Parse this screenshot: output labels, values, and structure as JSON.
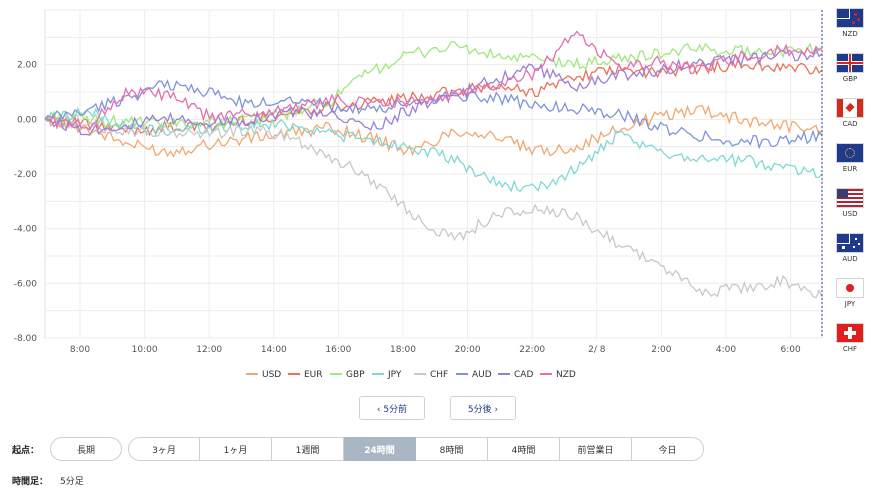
{
  "chart_data": {
    "type": "line",
    "ylim": [
      -8,
      4
    ],
    "yticks": [
      "2.00",
      "0.00",
      "-2.00",
      "-4.00",
      "-6.00",
      "-8.00"
    ],
    "xticks": [
      "8:00",
      "10:00",
      "12:00",
      "14:00",
      "16:00",
      "18:00",
      "20:00",
      "22:00",
      "2/ 8",
      "2:00",
      "4:00",
      "6:00"
    ],
    "grid": true,
    "series": [
      {
        "name": "USD",
        "color": "#f0a870",
        "values": [
          0.0,
          -0.3,
          -0.9,
          -1.2,
          -0.9,
          -0.7,
          -0.5,
          -0.3,
          -0.7,
          -1.2,
          -0.4,
          -0.6,
          -1.2,
          -1.0,
          -0.4,
          0.1,
          0.4,
          0.0,
          -0.2,
          -0.4
        ]
      },
      {
        "name": "EUR",
        "color": "#e8735a",
        "values": [
          0.0,
          -0.2,
          -0.4,
          -0.3,
          -0.3,
          0.0,
          0.2,
          0.5,
          0.6,
          0.8,
          1.0,
          1.2,
          1.0,
          1.6,
          1.8,
          1.7,
          1.9,
          2.0,
          1.9,
          1.8
        ]
      },
      {
        "name": "GBP",
        "color": "#9ee87f",
        "values": [
          0.1,
          0.0,
          -0.1,
          -0.2,
          -0.1,
          0.0,
          0.2,
          0.7,
          1.8,
          2.4,
          2.7,
          2.3,
          2.2,
          2.0,
          2.2,
          2.4,
          2.6,
          2.5,
          2.5,
          2.6
        ]
      },
      {
        "name": "JPY",
        "color": "#7fd8d4",
        "values": [
          0.0,
          0.3,
          -0.3,
          -0.4,
          -0.3,
          -0.2,
          -0.2,
          -0.5,
          -0.8,
          -1.0,
          -1.5,
          -2.3,
          -2.6,
          -1.8,
          -0.6,
          -1.2,
          -1.4,
          -1.5,
          -1.7,
          -2.0
        ]
      },
      {
        "name": "CHF",
        "color": "#c8c8c8",
        "values": [
          0.0,
          -0.2,
          -0.4,
          -0.5,
          -0.5,
          -0.4,
          -0.6,
          -1.4,
          -2.2,
          -3.5,
          -4.4,
          -3.5,
          -3.3,
          -3.6,
          -4.5,
          -5.3,
          -6.3,
          -6.2,
          -5.9,
          -6.5
        ]
      },
      {
        "name": "AUD",
        "color": "#7f93d8",
        "values": [
          0.0,
          0.3,
          0.8,
          1.3,
          1.0,
          0.5,
          0.8,
          0.5,
          0.3,
          0.6,
          0.9,
          0.8,
          0.5,
          0.4,
          0.2,
          -0.3,
          -0.6,
          -0.8,
          -0.8,
          -0.6
        ]
      },
      {
        "name": "CAD",
        "color": "#9a7fd8",
        "values": [
          0.0,
          -0.4,
          -0.2,
          0.0,
          -0.1,
          0.0,
          0.3,
          0.1,
          -0.3,
          0.4,
          0.8,
          1.5,
          1.9,
          1.2,
          1.6,
          1.8,
          2.1,
          2.2,
          2.3,
          2.4
        ]
      },
      {
        "name": "NZD",
        "color": "#e46fb0",
        "values": [
          0.0,
          -0.3,
          1.0,
          0.9,
          0.1,
          0.2,
          0.4,
          0.7,
          0.6,
          0.6,
          0.9,
          1.3,
          1.7,
          3.2,
          1.9,
          2.1,
          1.8,
          2.3,
          2.5,
          2.6
        ]
      }
    ]
  },
  "flags": [
    {
      "code": "NZD",
      "icon": "nz-flag-icon"
    },
    {
      "code": "GBP",
      "icon": "uk-flag-icon"
    },
    {
      "code": "CAD",
      "icon": "canada-flag-icon"
    },
    {
      "code": "EUR",
      "icon": "eu-flag-icon"
    },
    {
      "code": "USD",
      "icon": "us-flag-icon"
    },
    {
      "code": "AUD",
      "icon": "au-flag-icon"
    },
    {
      "code": "JPY",
      "icon": "japan-flag-icon"
    },
    {
      "code": "CHF",
      "icon": "swiss-flag-icon"
    }
  ],
  "nav": {
    "prev": "‹ 5分前",
    "next": "5分後 ›"
  },
  "controls": {
    "start_label": "起点：",
    "long_term": "長期",
    "segments": [
      "3ヶ月",
      "1ヶ月",
      "1週間",
      "24時間",
      "8時間",
      "4時間",
      "前営業日",
      "今日"
    ],
    "active": "24時間",
    "interval_label": "時間足：",
    "interval_value": "5分足"
  }
}
